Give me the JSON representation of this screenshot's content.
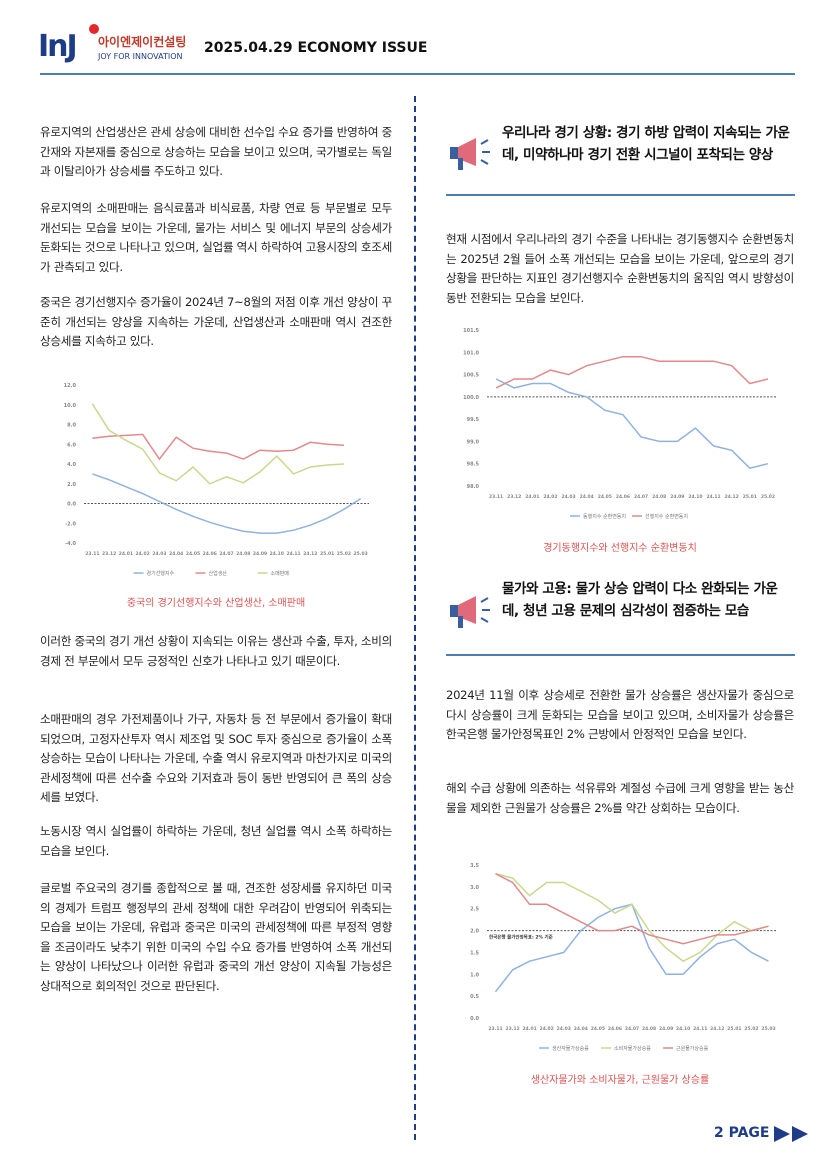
{
  "header": {
    "logo": "InJ",
    "company": "아이엔제이컨설팅",
    "slogan": "JOY FOR INNOVATION",
    "title": "2025.04.29 ECONOMY ISSUE"
  },
  "left": {
    "paragraphs_top": [
      "유로지역의 산업생산은 관세 상승에 대비한 선수입 수요 증가를 반영하여 중간재와 자본재를 중심으로 상승하는 모습을 보이고 있으며, 국가별로는 독일과 이탈리아가 상승세를 주도하고 있다.",
      "유로지역의 소매판매는 음식료품과 비식료품, 차량 연료 등 부문별로 모두 개선되는 모습을 보이는 가운데, 물가는 서비스 및 에너지 부문의 상승세가 둔화되는 것으로 나타나고 있으며, 실업률 역시 하락하여 고용시장의 호조세가 관측되고 있다.",
      "중국은 경기선행지수 증가율이 2024년 7~8월의 저점 이후 개선 양상이 꾸준히 개선되는 양상을 지속하는 가운데, 산업생산과 소매판매 역시 견조한 상승세를 지속하고 있다."
    ],
    "caption": "중국의 경기선행지수와 산업생산, 소매판매",
    "paragraphs_bottom": [
      "이러한 중국의 경기 개선 상황이 지속되는 이유는 생산과 수출, 투자, 소비의 경제 전 부문에서 모두 긍정적인 신호가 나타나고 있기 때문이다.",
      "소매판매의 경우 가전제품이나 가구, 자동차 등 전 부문에서 증가율이 확대되었으며, 고정자산투자 역시 제조업 및 SOC 투자 중심으로 증가율이 소폭 상승하는 모습이 나타나는 가운데, 수출 역시 유로지역과 마찬가지로 미국의 관세정책에 따른 선수출 수요와 기저효과 등이 동반 반영되어 큰 폭의 상승세를 보였다.",
      "노동시장 역시 실업률이 하락하는 가운데, 청년 실업률 역시 소폭 하락하는 모습을 보인다.",
      "글로벌 주요국의 경기를 종합적으로 볼 때, 견조한 성장세를 유지하던 미국의 경제가 트럼프 행정부의 관세 정책에 대한 우려감이 반영되어 위축되는 모습을 보이는 가운데, 유럽과 중국은 미국의 관세정책에 따른 부정적 영향을 조금이라도 낮추기 위한 미국의 수입 수요 증가를 반영하여 소폭 개선되는 양상이 나타났으나 이러한 유럽과 중국의 개선 양상이 지속될 가능성은 상대적으로 회의적인 것으로 판단된다."
    ]
  },
  "right": {
    "heading_1": "우리나라 경기 상황: 경기 하방 압력이 지속되는 가운데, 미약하나마 경기 전환 시그널이 포착되는 양상",
    "paragraph_1": "현재 시점에서 우리나라의 경기 수준을 나타내는 경기동행지수 순환변동치는 2025년 2월 들어 소폭 개선되는 모습을 보이는 가운데, 앞으로의 경기 상황을 판단하는 지표인 경기선행지수 순환변동치의 움직임 역시 방향성이 동반 전환되는 모습을 보인다.",
    "caption_1": "경기동행지수와 선행지수 순환변동치",
    "heading_2": "물가와 고용: 물가 상승 압력이 다소 완화되는 가운데, 청년 고용 문제의 심각성이 점증하는 모습",
    "paragraphs_2": [
      "2024년 11월 이후 상승세로 전환한 물가 상승률은 생산자물가 중심으로 다시 상승률이 크게 둔화되는 모습을 보이고 있으며, 소비자물가 상승률은 한국은행 물가안정목표인 2% 근방에서 안정적인 모습을 보인다.",
      "해외 수급 상황에 의존하는 석유류와 계절성 수급에 크게 영향을 받는 농산물을 제외한 근원물가 상승률은 2%를 약간 상회하는 모습이다."
    ],
    "caption_2": "생산자물가와 소비자물가, 근원물가 상승률"
  },
  "footer": {
    "page": "2 PAGE"
  },
  "chart_data": [
    {
      "type": "line",
      "grid": false,
      "legend": "bottom",
      "reference": 0,
      "categories": [
        "23.11",
        "23.12",
        "24.01",
        "24.02",
        "24.03",
        "24.04",
        "24.05",
        "24.06",
        "24.07",
        "24.08",
        "24.09",
        "24.10",
        "24.11",
        "24.12",
        "25.01",
        "25.02",
        "25.03"
      ],
      "ylim": [
        -4,
        12
      ],
      "yticks": [
        {
          "value": 12,
          "label": "12.0"
        },
        {
          "value": 10,
          "label": "10.0"
        },
        {
          "value": 8,
          "label": "8.0"
        },
        {
          "value": 6,
          "label": "6.0"
        },
        {
          "value": 4,
          "label": "4.0"
        },
        {
          "value": 2,
          "label": "2.0"
        },
        {
          "value": 0,
          "label": "0.0"
        },
        {
          "value": -2,
          "label": "-2.0"
        },
        {
          "value": -4,
          "label": "-4.0"
        }
      ],
      "series": [
        {
          "name": "경기선행지수",
          "color": "#8fb2e0",
          "values": [
            3.0,
            2.4,
            1.7,
            1.0,
            0.2,
            -0.6,
            -1.3,
            -1.9,
            -2.4,
            -2.8,
            -3.0,
            -3.0,
            -2.7,
            -2.2,
            -1.5,
            -0.6,
            0.5
          ]
        },
        {
          "name": "산업생산",
          "color": "#e08a8a",
          "values": [
            6.6,
            6.8,
            6.9,
            7.0,
            4.5,
            6.7,
            5.6,
            5.3,
            5.1,
            4.5,
            5.4,
            5.3,
            5.4,
            6.2,
            6.0,
            5.9,
            null
          ]
        },
        {
          "name": "소매판매",
          "color": "#c7d98f",
          "values": [
            10.1,
            7.4,
            6.4,
            5.5,
            3.1,
            2.3,
            3.7,
            2.0,
            2.7,
            2.1,
            3.2,
            4.8,
            3.0,
            3.7,
            3.9,
            4.0,
            null
          ]
        }
      ]
    },
    {
      "type": "line",
      "grid": false,
      "legend": "bottom",
      "reference": 100,
      "categories": [
        "23.11",
        "23.12",
        "24.01",
        "24.02",
        "24.03",
        "24.04",
        "24.05",
        "24.06",
        "24.07",
        "24.08",
        "24.09",
        "24.10",
        "24.11",
        "24.12",
        "25.01",
        "25.02"
      ],
      "ylim": [
        98,
        101.5
      ],
      "yticks": [
        101.5,
        {
          "value": 101,
          "label": "101.0"
        },
        100.5,
        {
          "value": 100,
          "label": "100.0"
        },
        99.5,
        {
          "value": 99,
          "label": "99.0"
        },
        98.5,
        {
          "value": 98,
          "label": "98.0"
        }
      ],
      "series": [
        {
          "name": "동행지수 순환변동치",
          "color": "#8fb2e0",
          "values": [
            100.4,
            100.2,
            100.3,
            100.3,
            100.1,
            100.0,
            99.7,
            99.6,
            99.1,
            99.0,
            99.0,
            99.3,
            98.9,
            98.8,
            98.4,
            98.5
          ]
        },
        {
          "name": "선행지수 순환변동치",
          "color": "#e08a8a",
          "values": [
            100.2,
            100.4,
            100.4,
            100.6,
            100.5,
            100.7,
            100.8,
            100.9,
            100.9,
            100.8,
            100.8,
            100.8,
            100.8,
            100.7,
            100.3,
            100.4
          ]
        }
      ]
    },
    {
      "type": "line",
      "grid": false,
      "legend": "bottom",
      "reference": 2,
      "annotation": "한국은행 물가안정목표: 2% 기준",
      "categories": [
        "23.11",
        "23.12",
        "24.01",
        "24.02",
        "24.03",
        "24.04",
        "24.05",
        "24.06",
        "24.07",
        "24.08",
        "24.09",
        "24.10",
        "24.11",
        "24.12",
        "25.01",
        "25.02",
        "25.03"
      ],
      "ylim": [
        0,
        3.5
      ],
      "yticks": [
        3.5,
        {
          "value": 3,
          "label": "3.0"
        },
        2.5,
        {
          "value": 2,
          "label": "2.0"
        },
        1.5,
        {
          "value": 1,
          "label": "1.0"
        },
        0.5,
        {
          "value": 0,
          "label": "0.0"
        }
      ],
      "series": [
        {
          "name": "생산자물가상승률",
          "color": "#8fb2e0",
          "values": [
            0.6,
            1.1,
            1.3,
            1.4,
            1.5,
            2.0,
            2.3,
            2.5,
            2.6,
            1.6,
            1.0,
            1.0,
            1.4,
            1.7,
            1.8,
            1.5,
            1.3
          ]
        },
        {
          "name": "소비자물가상승률",
          "color": "#c7d98f",
          "values": [
            3.3,
            3.2,
            2.8,
            3.1,
            3.1,
            2.9,
            2.7,
            2.4,
            2.6,
            2.0,
            1.6,
            1.3,
            1.5,
            1.9,
            2.2,
            2.0,
            2.1
          ]
        },
        {
          "name": "근원물가상승률",
          "color": "#e08a8a",
          "values": [
            3.3,
            3.1,
            2.6,
            2.6,
            2.4,
            2.2,
            2.0,
            2.0,
            2.1,
            1.9,
            1.8,
            1.7,
            1.8,
            1.9,
            1.9,
            2.0,
            2.1
          ]
        }
      ]
    }
  ]
}
